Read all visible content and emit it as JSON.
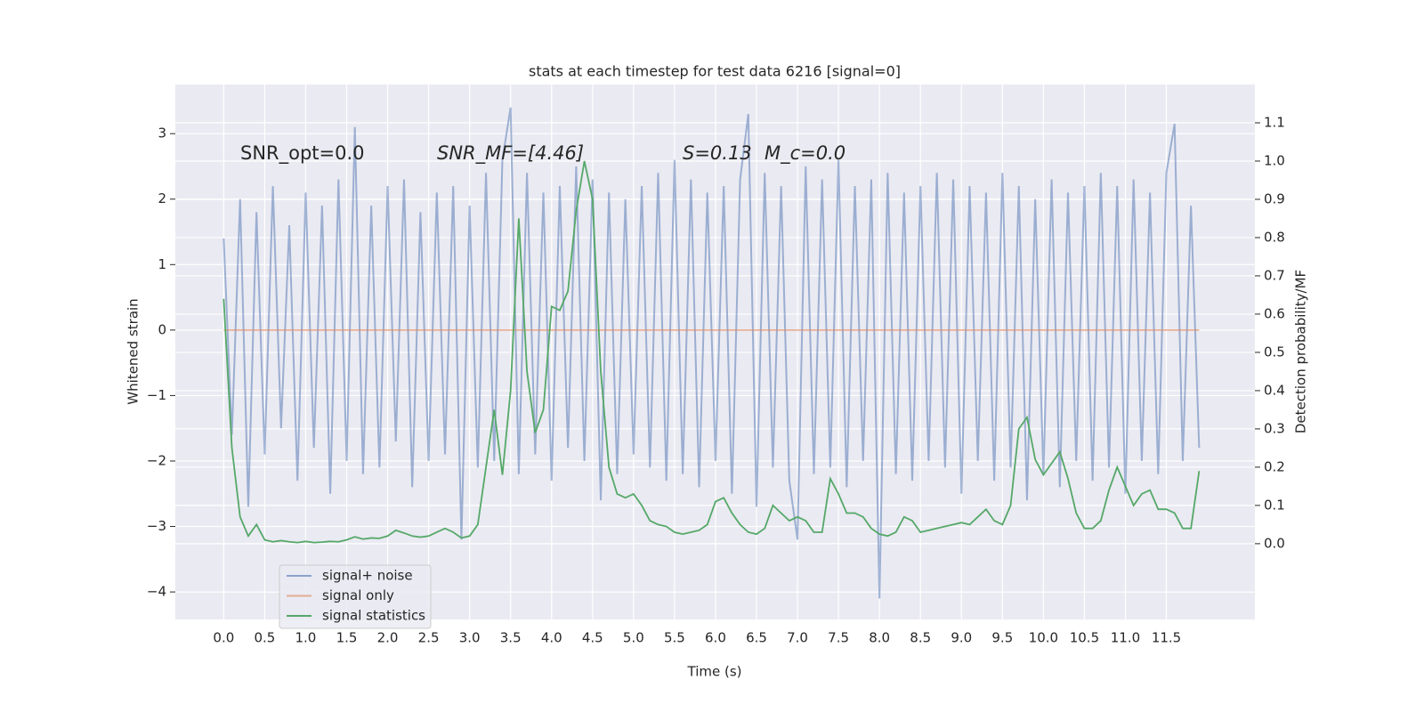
{
  "chart_data": {
    "type": "line",
    "title": "stats at each timestep for test data 6216 [signal=0]",
    "xlabel": "Time (s)",
    "ylabel": "Whitened strain",
    "y2label": "Detection probability/MF",
    "annotations": [
      "SNR_opt=0.0",
      "SNR_MF=[4.46]",
      "S=0.13",
      "M_c=0.0"
    ],
    "legend": "lower left",
    "grid": true,
    "xlim": [
      -0.59,
      12.58
    ],
    "ylim": [
      -4.42,
      3.75
    ],
    "y2lim": [
      -0.198,
      1.2
    ],
    "xticks": [
      {
        "value": 0,
        "label": "0.0"
      },
      0.5,
      {
        "value": 1,
        "label": "1.0"
      },
      1.5,
      {
        "value": 2,
        "label": "2.0"
      },
      2.5,
      {
        "value": 3,
        "label": "3.0"
      },
      3.5,
      {
        "value": 4,
        "label": "4.0"
      },
      4.5,
      {
        "value": 5,
        "label": "5.0"
      },
      5.5,
      {
        "value": 6,
        "label": "6.0"
      },
      6.5,
      {
        "value": 7,
        "label": "7.0"
      },
      7.5,
      {
        "value": 8,
        "label": "8.0"
      },
      8.5,
      {
        "value": 9,
        "label": "9.0"
      },
      9.5,
      {
        "value": 10,
        "label": "10.0"
      },
      10.5,
      {
        "value": 11,
        "label": "11.0"
      },
      11.5
    ],
    "yticks": [
      {
        "value": -4,
        "label": "−4"
      },
      {
        "value": -3,
        "label": "−3"
      },
      {
        "value": -2,
        "label": "−2"
      },
      {
        "value": -1,
        "label": "−1"
      },
      0,
      1,
      2,
      3
    ],
    "y2ticks": [
      {
        "value": 0,
        "label": "0.0"
      },
      0.1,
      0.2,
      0.3,
      0.4,
      0.5,
      0.6,
      0.7,
      0.8,
      0.9,
      {
        "value": 1,
        "label": "1.0"
      },
      1.1
    ],
    "x": [
      0.0,
      0.1,
      0.2,
      0.3,
      0.4,
      0.5,
      0.6,
      0.7,
      0.8,
      0.9,
      1.0,
      1.1,
      1.2,
      1.3,
      1.4,
      1.5,
      1.6,
      1.7,
      1.8,
      1.9,
      2.0,
      2.1,
      2.2,
      2.3,
      2.4,
      2.5,
      2.6,
      2.7,
      2.8,
      2.9,
      3.0,
      3.1,
      3.2,
      3.3,
      3.4,
      3.5,
      3.6,
      3.7,
      3.8,
      3.9,
      4.0,
      4.1,
      4.2,
      4.3,
      4.4,
      4.5,
      4.6,
      4.7,
      4.8,
      4.9,
      5.0,
      5.1,
      5.2,
      5.3,
      5.4,
      5.5,
      5.6,
      5.7,
      5.8,
      5.9,
      6.0,
      6.1,
      6.2,
      6.3,
      6.4,
      6.5,
      6.6,
      6.7,
      6.8,
      6.9,
      7.0,
      7.1,
      7.2,
      7.3,
      7.4,
      7.5,
      7.6,
      7.7,
      7.8,
      7.9,
      8.0,
      8.1,
      8.2,
      8.3,
      8.4,
      8.5,
      8.6,
      8.7,
      8.8,
      8.9,
      9.0,
      9.1,
      9.2,
      9.3,
      9.4,
      9.5,
      9.6,
      9.7,
      9.8,
      9.9,
      10.0,
      10.1,
      10.2,
      10.3,
      10.4,
      10.5,
      10.6,
      10.7,
      10.8,
      10.9,
      11.0,
      11.1,
      11.2,
      11.3,
      11.4,
      11.5,
      11.6,
      11.7,
      11.8,
      11.9
    ],
    "series": [
      {
        "name": "signal+ noise",
        "color": "#4c72b0",
        "values": [
          1.4,
          -1.6,
          2.0,
          -2.7,
          1.8,
          -1.9,
          2.2,
          -1.5,
          1.6,
          -2.3,
          2.1,
          -1.8,
          1.9,
          -2.5,
          2.3,
          -2.0,
          3.1,
          -2.2,
          1.9,
          -2.1,
          2.2,
          -1.7,
          2.3,
          -2.4,
          1.8,
          -2.0,
          2.1,
          -1.9,
          2.2,
          -3.2,
          1.9,
          -2.1,
          2.4,
          -2.0,
          2.6,
          3.4,
          -2.2,
          2.4,
          -1.9,
          2.1,
          -2.3,
          2.2,
          -1.8,
          2.5,
          -2.0,
          2.3,
          -2.6,
          2.1,
          -2.2,
          2.0,
          -1.9,
          2.2,
          -2.1,
          2.4,
          -2.3,
          2.6,
          -2.2,
          2.3,
          -2.4,
          2.1,
          -2.0,
          2.2,
          -2.5,
          2.3,
          3.3,
          -2.7,
          2.4,
          -2.1,
          2.2,
          -2.3,
          -3.2,
          2.5,
          -2.2,
          2.3,
          -2.1,
          2.6,
          -2.4,
          2.2,
          -2.0,
          2.3,
          -4.1,
          2.4,
          -2.2,
          2.1,
          -2.3,
          2.2,
          -2.0,
          2.4,
          -2.1,
          2.3,
          -2.5,
          2.2,
          -2.0,
          2.1,
          -2.3,
          2.4,
          -2.1,
          2.2,
          -2.6,
          2.0,
          -2.2,
          2.3,
          -2.4,
          2.1,
          -2.0,
          2.2,
          -2.3,
          2.4,
          -2.1,
          2.2,
          -2.5,
          2.3,
          -2.0,
          2.1,
          -2.2,
          2.4,
          3.15,
          -2.0,
          1.9,
          -1.8
        ]
      },
      {
        "name": "signal only",
        "color": "#dd8452",
        "values": [
          0,
          0,
          0,
          0,
          0,
          0,
          0,
          0,
          0,
          0,
          0,
          0,
          0,
          0,
          0,
          0,
          0,
          0,
          0,
          0,
          0,
          0,
          0,
          0,
          0,
          0,
          0,
          0,
          0,
          0,
          0,
          0,
          0,
          0,
          0,
          0,
          0,
          0,
          0,
          0,
          0,
          0,
          0,
          0,
          0,
          0,
          0,
          0,
          0,
          0,
          0,
          0,
          0,
          0,
          0,
          0,
          0,
          0,
          0,
          0,
          0,
          0,
          0,
          0,
          0,
          0,
          0,
          0,
          0,
          0,
          0,
          0,
          0,
          0,
          0,
          0,
          0,
          0,
          0,
          0,
          0,
          0,
          0,
          0,
          0,
          0,
          0,
          0,
          0,
          0,
          0,
          0,
          0,
          0,
          0,
          0,
          0,
          0,
          0,
          0,
          0,
          0,
          0,
          0,
          0,
          0,
          0,
          0,
          0,
          0,
          0,
          0,
          0,
          0,
          0,
          0,
          0,
          0,
          0,
          0
        ]
      },
      {
        "name": "signal statistics",
        "color": "#55a868",
        "axis": "y2",
        "values": [
          0.64,
          0.25,
          0.07,
          0.02,
          0.05,
          0.01,
          0.005,
          0.008,
          0.005,
          0.003,
          0.006,
          0.003,
          0.004,
          0.006,
          0.005,
          0.01,
          0.018,
          0.012,
          0.015,
          0.014,
          0.02,
          0.035,
          0.028,
          0.02,
          0.017,
          0.02,
          0.03,
          0.04,
          0.03,
          0.015,
          0.02,
          0.05,
          0.2,
          0.35,
          0.18,
          0.4,
          0.85,
          0.45,
          0.29,
          0.35,
          0.62,
          0.61,
          0.66,
          0.87,
          1.0,
          0.9,
          0.45,
          0.2,
          0.13,
          0.12,
          0.13,
          0.1,
          0.06,
          0.05,
          0.045,
          0.03,
          0.025,
          0.03,
          0.035,
          0.05,
          0.11,
          0.12,
          0.08,
          0.05,
          0.03,
          0.025,
          0.04,
          0.1,
          0.08,
          0.06,
          0.07,
          0.06,
          0.03,
          0.03,
          0.17,
          0.13,
          0.08,
          0.08,
          0.07,
          0.04,
          0.025,
          0.02,
          0.03,
          0.07,
          0.06,
          0.03,
          0.035,
          0.04,
          0.045,
          0.05,
          0.055,
          0.05,
          0.07,
          0.09,
          0.06,
          0.05,
          0.1,
          0.3,
          0.33,
          0.22,
          0.18,
          0.21,
          0.24,
          0.17,
          0.08,
          0.04,
          0.04,
          0.06,
          0.14,
          0.2,
          0.15,
          0.1,
          0.13,
          0.14,
          0.09,
          0.09,
          0.08,
          0.04,
          0.04,
          0.19
        ]
      }
    ]
  }
}
